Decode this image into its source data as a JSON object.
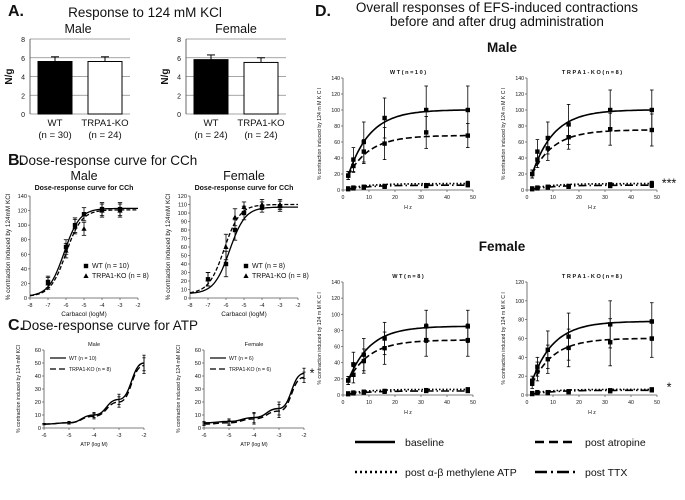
{
  "figure": {
    "panel_a_letter": "A.",
    "panel_a_title": "Response to 124  mM KCl",
    "panel_b_letter": "B.",
    "panel_b_title": "Dose-response curve for CCh",
    "panel_c_letter": "C.",
    "panel_c_title": "Dose-response curve for ATP",
    "panel_d_letter": "D.",
    "panel_d_title_1": "Overall responses of EFS-induced contractions",
    "panel_d_title_2": "before and after drug administration",
    "male_label": "Male",
    "female_label": "Female",
    "legend_baseline": "baseline",
    "legend_atropine": "post atropine",
    "legend_abmeATP": "post α-β methylene ATP",
    "legend_ttx": "post TTX"
  },
  "chart_data": [
    {
      "id": "A-male",
      "type": "bar",
      "title": "Male",
      "ylabel": "N/g",
      "ylim": [
        0,
        8
      ],
      "yticks": [
        0,
        2,
        4,
        6,
        8
      ],
      "categories": [
        "WT",
        "TRPA1-KO"
      ],
      "category_n": [
        "(n = 30)",
        "(n = 24)"
      ],
      "values": [
        5.6,
        5.6
      ],
      "errors": [
        0.5,
        0.5
      ],
      "colors": [
        "#000000",
        "#ffffff"
      ]
    },
    {
      "id": "A-female",
      "type": "bar",
      "title": "Female",
      "ylabel": "N/g",
      "ylim": [
        0,
        8
      ],
      "yticks": [
        0,
        2,
        4,
        6,
        8
      ],
      "categories": [
        "WT",
        "TRPA1-KO"
      ],
      "category_n": [
        "(n = 24)",
        "(n = 24)"
      ],
      "values": [
        5.8,
        5.5
      ],
      "errors": [
        0.5,
        0.5
      ],
      "colors": [
        "#000000",
        "#ffffff"
      ]
    },
    {
      "id": "B-male",
      "type": "line",
      "title": "Male",
      "inner_title": "Dose-response curve for CCh",
      "xlabel": "Carbacol (logM)",
      "ylabel": "% contraction induced by 124mM KCl",
      "xlim": [
        -8,
        -2
      ],
      "ylim": [
        0,
        140
      ],
      "xticks": [
        -8,
        -7,
        -6,
        -5,
        -4,
        -3,
        -2
      ],
      "yticks": [
        0,
        20,
        40,
        60,
        80,
        100,
        120,
        140
      ],
      "x": [
        -7,
        -6,
        -5.5,
        -5,
        -4,
        -3
      ],
      "series": [
        {
          "name": "WT (n = 10)",
          "marker": "square",
          "style": "solid",
          "values": [
            22,
            70,
            100,
            115,
            122,
            122
          ],
          "errors": [
            8,
            10,
            10,
            9,
            9,
            9
          ],
          "fit": {
            "bottom": 2,
            "top": 123,
            "ec50": -6.1,
            "hill": 1.0
          }
        },
        {
          "name": "TRPA1-KO (n = 8)",
          "marker": "triangle",
          "style": "solid",
          "values": [
            20,
            65,
            98,
            95,
            120,
            120
          ],
          "errors": [
            8,
            10,
            10,
            9,
            9,
            9
          ],
          "fit": {
            "bottom": 2,
            "top": 121,
            "ec50": -6.0,
            "hill": 1.0
          }
        }
      ]
    },
    {
      "id": "B-female",
      "type": "line",
      "title": "Female",
      "inner_title": "Dose-response curve for CCh",
      "xlabel": "Carbacol (logM)",
      "ylabel": "% contraction induced by 124mM KCl",
      "xlim": [
        -8,
        -2
      ],
      "ylim": [
        0,
        120
      ],
      "xticks": [
        -8,
        -7,
        -6,
        -5,
        -4,
        -3,
        -2
      ],
      "yticks": [
        0,
        10,
        20,
        30,
        40,
        50,
        60,
        70,
        80,
        90,
        100,
        110,
        120
      ],
      "x": [
        -7,
        -6,
        -5.5,
        -5,
        -4,
        -3
      ],
      "series": [
        {
          "name": "WT (n = 8)",
          "marker": "square",
          "style": "solid",
          "values": [
            22,
            40,
            80,
            100,
            107,
            108
          ],
          "errors": [
            8,
            15,
            12,
            8,
            6,
            6
          ],
          "fit": {
            "bottom": 5,
            "top": 107,
            "ec50": -5.8,
            "hill": 1.0
          }
        },
        {
          "name": "TRPA1-KO (n = 8)",
          "marker": "triangle",
          "style": "solid",
          "values": [
            22,
            60,
            95,
            107,
            110,
            110
          ],
          "errors": [
            8,
            15,
            10,
            6,
            6,
            6
          ],
          "fit": {
            "bottom": 5,
            "top": 110,
            "ec50": -6.1,
            "hill": 1.0
          }
        }
      ]
    },
    {
      "id": "C-male",
      "type": "line",
      "title": "Male",
      "xlabel": "ATP (log M)",
      "ylabel": "% contraction induced by 124 mM KCl",
      "xlim": [
        -6,
        -2
      ],
      "ylim": [
        0,
        60
      ],
      "xticks": [
        -6,
        -5,
        -4,
        -3,
        -2
      ],
      "yticks": [
        0,
        10,
        20,
        30,
        40,
        50,
        60
      ],
      "x": [
        -6,
        -5,
        -4,
        -3,
        -2
      ],
      "series": [
        {
          "name": "WT (n = 10)",
          "style": "solid",
          "values": [
            3,
            4,
            10,
            22,
            50
          ],
          "errors": [
            0.5,
            1,
            2,
            4,
            6
          ]
        },
        {
          "name": "TRPA1-KO (n = 8)",
          "style": "dashed",
          "values": [
            3,
            4,
            9,
            20,
            48
          ],
          "errors": [
            0.5,
            1,
            2,
            4,
            6
          ]
        }
      ]
    },
    {
      "id": "C-female",
      "type": "line",
      "title": "Female",
      "xlabel": "ATP (log M)",
      "ylabel": "% contraction induced by 124 mM KCl",
      "xlim": [
        -6,
        -2
      ],
      "ylim": [
        0,
        60
      ],
      "xticks": [
        -6,
        -5,
        -4,
        -3,
        -2
      ],
      "yticks": [
        0,
        10,
        20,
        30,
        40,
        50,
        60
      ],
      "x": [
        -6,
        -5,
        -4,
        -3,
        -2
      ],
      "series": [
        {
          "name": "WT (n = 6)",
          "style": "solid",
          "values": [
            4,
            5,
            8,
            15,
            42
          ],
          "errors": [
            1,
            2,
            4,
            5,
            4
          ]
        },
        {
          "name": "TRPA1-KO (n = 6)",
          "style": "dashed",
          "values": [
            3,
            4,
            7,
            13,
            39
          ],
          "errors": [
            1,
            2,
            4,
            5,
            4
          ]
        }
      ],
      "annotation": "*"
    },
    {
      "id": "D-male-WT",
      "type": "line",
      "title": "W T  ( n = 1 0 )",
      "xlabel": "H z",
      "ylabel": "% contraction induced by 124 m M K C l",
      "xlim": [
        0,
        50
      ],
      "ylim": [
        0,
        140
      ],
      "xticks": [
        0,
        10,
        20,
        30,
        40,
        50
      ],
      "yticks": [
        0,
        20,
        40,
        60,
        80,
        100,
        120,
        140
      ],
      "x": [
        2,
        4,
        8,
        16,
        32,
        48
      ],
      "series": [
        {
          "name": "baseline",
          "style": "solid",
          "values": [
            18,
            38,
            60,
            90,
            100,
            100
          ],
          "errors": [
            5,
            15,
            25,
            25,
            30,
            30
          ]
        },
        {
          "name": "post atropine",
          "style": "dashed",
          "values": [
            18,
            30,
            48,
            58,
            72,
            68
          ],
          "errors": [
            5,
            8,
            15,
            20,
            20,
            15
          ]
        },
        {
          "name": "post α-β methylene ATP",
          "style": "dotted",
          "values": [
            2,
            3,
            4,
            5,
            6,
            8
          ],
          "errors": [
            1,
            1,
            2,
            2,
            2,
            3
          ]
        },
        {
          "name": "post TTX",
          "style": "dashdot",
          "values": [
            1,
            2,
            3,
            4,
            5,
            6
          ],
          "errors": [
            1,
            1,
            1,
            1,
            1,
            1
          ]
        }
      ]
    },
    {
      "id": "D-male-KO",
      "type": "line",
      "title": "T R P A 1 - K O  ( n = 8 )",
      "xlabel": "H z",
      "ylabel": "% contraction induced by 124 m M K C l",
      "xlim": [
        0,
        50
      ],
      "ylim": [
        0,
        140
      ],
      "xticks": [
        0,
        10,
        20,
        30,
        40,
        50
      ],
      "yticks": [
        0,
        20,
        40,
        60,
        80,
        100,
        120,
        140
      ],
      "x": [
        2,
        4,
        8,
        16,
        32,
        48
      ],
      "series": [
        {
          "name": "baseline",
          "style": "solid",
          "values": [
            20,
            48,
            65,
            82,
            100,
            100
          ],
          "errors": [
            5,
            15,
            20,
            25,
            25,
            25
          ]
        },
        {
          "name": "post atropine",
          "style": "dashed",
          "values": [
            20,
            38,
            52,
            66,
            76,
            75
          ],
          "errors": [
            5,
            10,
            15,
            15,
            20,
            20
          ]
        },
        {
          "name": "post α-β methylene ATP",
          "style": "dotted",
          "values": [
            2,
            3,
            4,
            5,
            7,
            8
          ],
          "errors": [
            1,
            1,
            2,
            2,
            2,
            3
          ]
        },
        {
          "name": "post TTX",
          "style": "dashdot",
          "values": [
            1,
            2,
            3,
            4,
            5,
            6
          ],
          "errors": [
            1,
            1,
            1,
            1,
            1,
            3
          ]
        }
      ],
      "annotation": "***"
    },
    {
      "id": "D-female-WT",
      "type": "line",
      "title": "W T  ( n = 8 )",
      "xlabel": "H z",
      "ylabel": "% contraction induced by 124 m M K C l",
      "xlim": [
        0,
        50
      ],
      "ylim": [
        0,
        140
      ],
      "xticks": [
        0,
        10,
        20,
        30,
        40,
        50
      ],
      "yticks": [
        0,
        20,
        40,
        60,
        80,
        100,
        120,
        140
      ],
      "x": [
        2,
        4,
        8,
        16,
        32,
        48
      ],
      "series": [
        {
          "name": "baseline",
          "style": "solid",
          "values": [
            18,
            38,
            50,
            70,
            85,
            85
          ],
          "errors": [
            5,
            15,
            20,
            20,
            20,
            20
          ]
        },
        {
          "name": "post atropine",
          "style": "dashed",
          "values": [
            18,
            25,
            42,
            58,
            68,
            68
          ],
          "errors": [
            5,
            10,
            15,
            20,
            20,
            20
          ]
        },
        {
          "name": "post α-β methylene ATP",
          "style": "dotted",
          "values": [
            2,
            3,
            4,
            5,
            6,
            7
          ],
          "errors": [
            1,
            1,
            2,
            2,
            2,
            2
          ]
        },
        {
          "name": "post TTX",
          "style": "dashdot",
          "values": [
            1,
            2,
            3,
            4,
            5,
            5
          ],
          "errors": [
            1,
            1,
            1,
            1,
            1,
            1
          ]
        }
      ]
    },
    {
      "id": "D-female-KO",
      "type": "line",
      "title": "T R P A 1 - K O  ( n = 8 )",
      "xlabel": "H z",
      "ylabel": "% contraction induced by 124 m M K C l",
      "xlim": [
        0,
        50
      ],
      "ylim": [
        0,
        120
      ],
      "xticks": [
        0,
        10,
        20,
        30,
        40,
        50
      ],
      "yticks": [
        0,
        20,
        40,
        60,
        80,
        100,
        120
      ],
      "x": [
        2,
        4,
        8,
        16,
        32,
        48
      ],
      "series": [
        {
          "name": "baseline",
          "style": "solid",
          "values": [
            15,
            30,
            48,
            62,
            75,
            78
          ],
          "errors": [
            5,
            10,
            20,
            25,
            25,
            20
          ]
        },
        {
          "name": "post atropine",
          "style": "dashed",
          "values": [
            12,
            25,
            38,
            50,
            56,
            60
          ],
          "errors": [
            5,
            10,
            15,
            20,
            25,
            20
          ]
        },
        {
          "name": "post α-β methylene ATP",
          "style": "dotted",
          "values": [
            2,
            3,
            3,
            4,
            5,
            6
          ],
          "errors": [
            1,
            1,
            1,
            1,
            1,
            1
          ]
        },
        {
          "name": "post TTX",
          "style": "dashdot",
          "values": [
            1,
            2,
            2,
            3,
            4,
            5
          ],
          "errors": [
            1,
            1,
            1,
            1,
            1,
            1
          ]
        }
      ],
      "annotation": "*"
    }
  ]
}
